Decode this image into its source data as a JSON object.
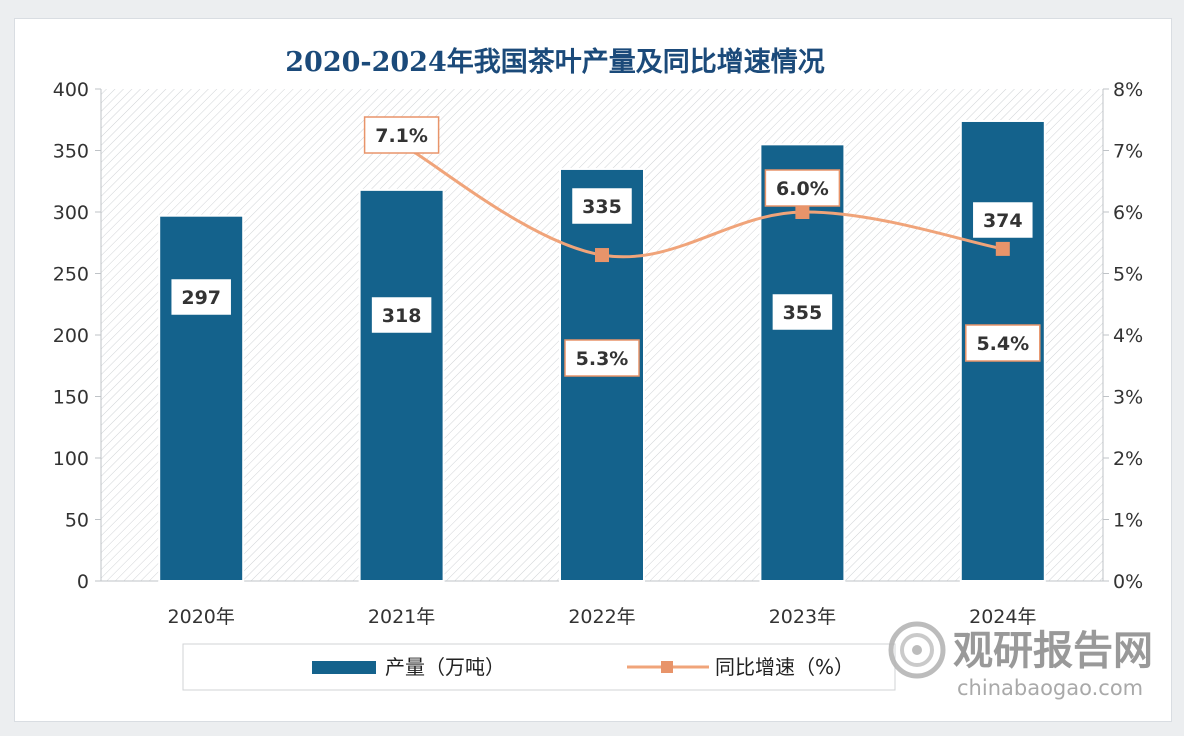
{
  "chart_data": {
    "type": "bar",
    "title": "2020-2024年我国茶叶产量及同比增速情况",
    "categories": [
      "2020年",
      "2021年",
      "2022年",
      "2023年",
      "2024年"
    ],
    "series": [
      {
        "name": "产量（万吨）",
        "type": "bar",
        "axis": "left",
        "values": [
          297,
          318,
          335,
          355,
          374
        ],
        "labels": [
          "297",
          "318",
          "335",
          "355",
          "374"
        ]
      },
      {
        "name": "同比增速（%）",
        "type": "line",
        "axis": "right",
        "values": [
          null,
          7.1,
          5.3,
          6.0,
          5.4
        ],
        "labels": [
          "",
          "7.1%",
          "5.3%",
          "6.0%",
          "5.4%"
        ]
      }
    ],
    "y_left": {
      "min": 0,
      "max": 400,
      "ticks": [
        "0",
        "50",
        "100",
        "150",
        "200",
        "250",
        "300",
        "350",
        "400"
      ]
    },
    "y_right": {
      "min": 0,
      "max": 8,
      "ticks": [
        "0%",
        "1%",
        "2%",
        "3%",
        "4%",
        "5%",
        "6%",
        "7%",
        "8%"
      ]
    },
    "legend_position": "bottom",
    "grid": false,
    "colors": {
      "bar": "#14628c",
      "line": "#f0a47a",
      "marker": "#e8946a",
      "title": "#1b4a7a"
    }
  },
  "watermark": {
    "brand": "观研报告网",
    "site": "chinabaogao.com"
  }
}
